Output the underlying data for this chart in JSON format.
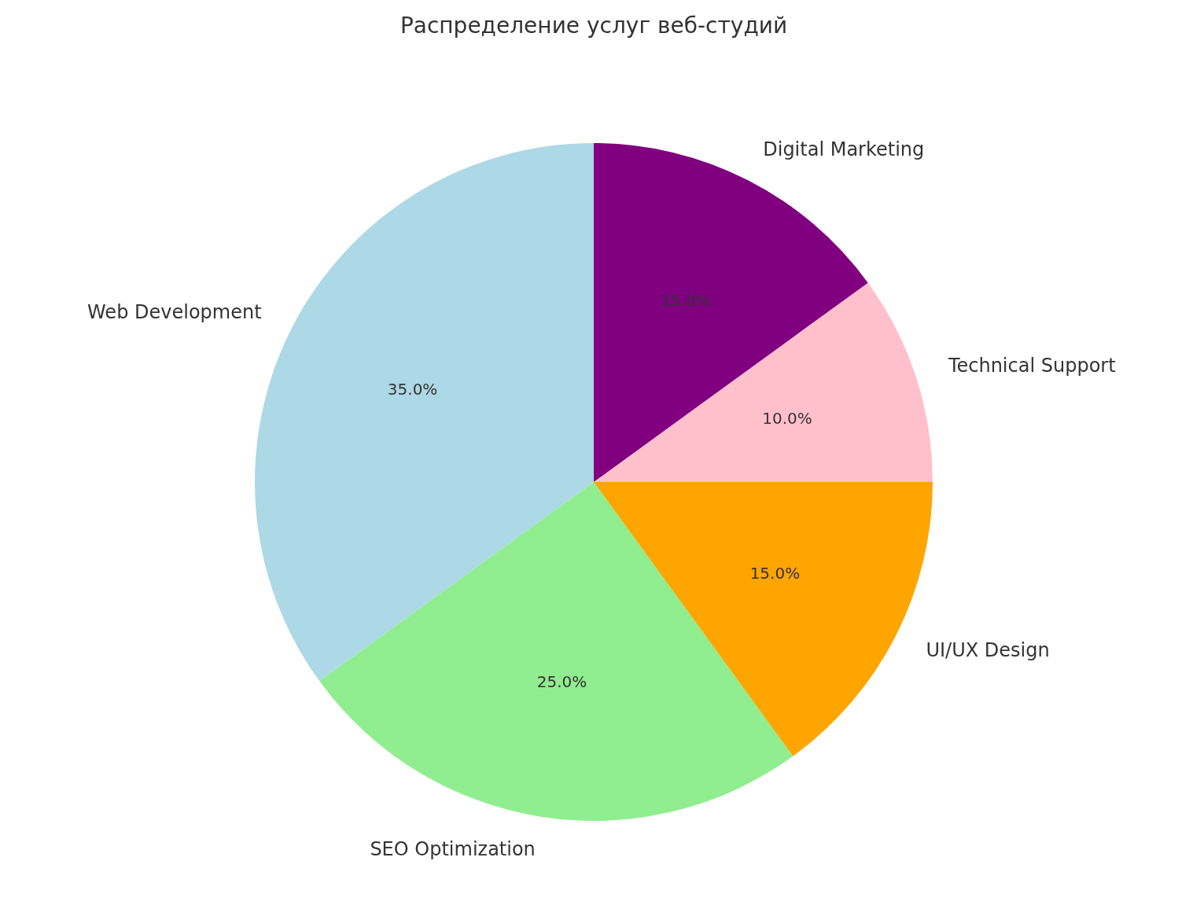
{
  "chart_data": {
    "type": "pie",
    "title": "Распределение услуг веб-студий",
    "categories": [
      "Web Development",
      "SEO Optimization",
      "UI/UX Design",
      "Technical Support",
      "Digital Marketing"
    ],
    "values": [
      35,
      25,
      15,
      10,
      15
    ],
    "colors": [
      "#add8e6",
      "#90ee90",
      "#ffa500",
      "#ffc0cb",
      "#800080"
    ],
    "value_labels": [
      "35.0%",
      "25.0%",
      "15.0%",
      "10.0%",
      "15.0%"
    ],
    "legend": false
  }
}
